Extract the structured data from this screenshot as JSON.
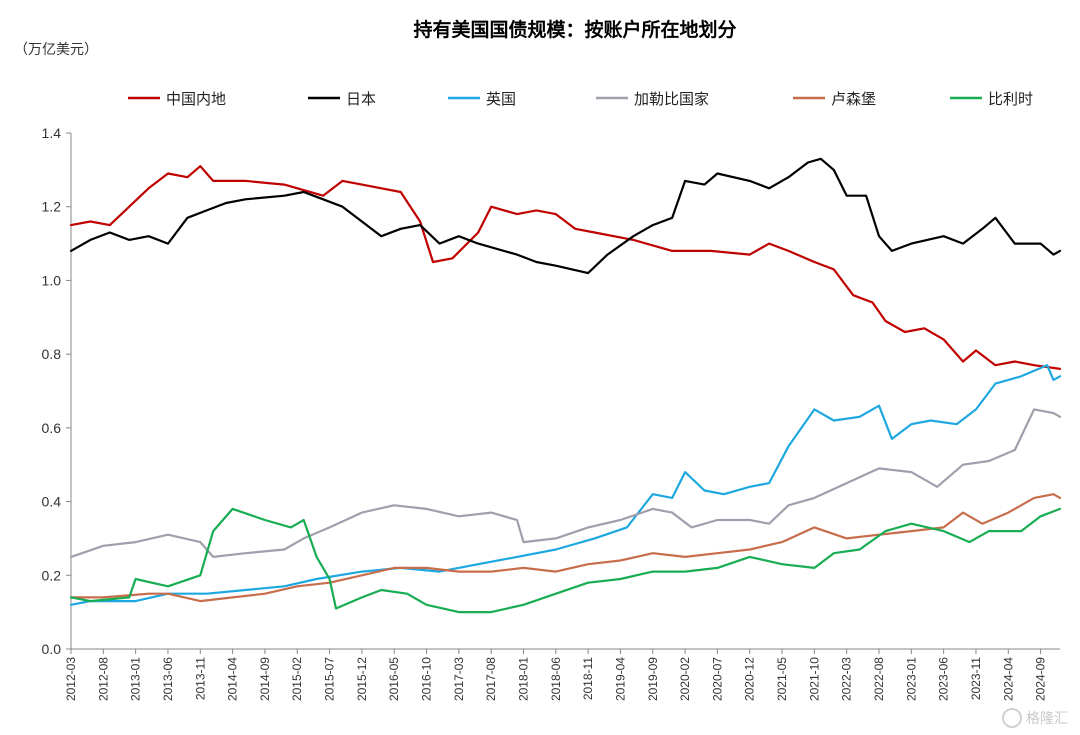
{
  "chart_data": {
    "type": "line",
    "title": "持有美国国债规模：按账户所在地划分",
    "ylabel": "（万亿美元）",
    "ylim": [
      0,
      1.4
    ],
    "yticks": [
      0.0,
      0.2,
      0.4,
      0.6,
      0.8,
      1.0,
      1.2,
      1.4
    ],
    "ytick_labels": [
      "0.0",
      "0.2",
      "0.4",
      "0.6",
      "0.8",
      "1.0",
      "1.2",
      "1.4"
    ],
    "x_start": "2012-03",
    "x_end": "2024-12",
    "xticks": [
      "2012-03",
      "2012-08",
      "2013-01",
      "2013-06",
      "2013-11",
      "2014-04",
      "2014-09",
      "2015-02",
      "2015-07",
      "2015-12",
      "2016-05",
      "2016-10",
      "2017-03",
      "2017-08",
      "2018-01",
      "2018-06",
      "2018-11",
      "2019-04",
      "2019-09",
      "2020-02",
      "2020-07",
      "2020-12",
      "2021-05",
      "2021-10",
      "2022-03",
      "2022-08",
      "2023-01",
      "2023-06",
      "2023-11",
      "2024-04",
      "2024-09"
    ],
    "grid": false,
    "legend_position": "top",
    "series": [
      {
        "name": "中国内地",
        "color": "#c00000",
        "points": [
          [
            "2012-03",
            1.15
          ],
          [
            "2012-06",
            1.16
          ],
          [
            "2012-09",
            1.15
          ],
          [
            "2012-12",
            1.2
          ],
          [
            "2013-03",
            1.25
          ],
          [
            "2013-06",
            1.29
          ],
          [
            "2013-09",
            1.28
          ],
          [
            "2013-11",
            1.31
          ],
          [
            "2014-01",
            1.27
          ],
          [
            "2014-06",
            1.27
          ],
          [
            "2014-12",
            1.26
          ],
          [
            "2015-06",
            1.23
          ],
          [
            "2015-09",
            1.27
          ],
          [
            "2015-12",
            1.26
          ],
          [
            "2016-03",
            1.25
          ],
          [
            "2016-06",
            1.24
          ],
          [
            "2016-09",
            1.16
          ],
          [
            "2016-11",
            1.05
          ],
          [
            "2017-02",
            1.06
          ],
          [
            "2017-06",
            1.13
          ],
          [
            "2017-08",
            1.2
          ],
          [
            "2017-12",
            1.18
          ],
          [
            "2018-03",
            1.19
          ],
          [
            "2018-06",
            1.18
          ],
          [
            "2018-09",
            1.14
          ],
          [
            "2018-12",
            1.13
          ],
          [
            "2019-06",
            1.11
          ],
          [
            "2019-12",
            1.08
          ],
          [
            "2020-06",
            1.08
          ],
          [
            "2020-12",
            1.07
          ],
          [
            "2021-03",
            1.1
          ],
          [
            "2021-06",
            1.08
          ],
          [
            "2021-10",
            1.05
          ],
          [
            "2022-01",
            1.03
          ],
          [
            "2022-04",
            0.96
          ],
          [
            "2022-07",
            0.94
          ],
          [
            "2022-09",
            0.89
          ],
          [
            "2022-12",
            0.86
          ],
          [
            "2023-03",
            0.87
          ],
          [
            "2023-06",
            0.84
          ],
          [
            "2023-09",
            0.78
          ],
          [
            "2023-11",
            0.81
          ],
          [
            "2024-02",
            0.77
          ],
          [
            "2024-05",
            0.78
          ],
          [
            "2024-08",
            0.77
          ],
          [
            "2024-12",
            0.76
          ]
        ]
      },
      {
        "name": "日本",
        "color": "#000000",
        "points": [
          [
            "2012-03",
            1.08
          ],
          [
            "2012-06",
            1.11
          ],
          [
            "2012-09",
            1.13
          ],
          [
            "2012-12",
            1.11
          ],
          [
            "2013-03",
            1.12
          ],
          [
            "2013-06",
            1.1
          ],
          [
            "2013-09",
            1.17
          ],
          [
            "2013-12",
            1.19
          ],
          [
            "2014-03",
            1.21
          ],
          [
            "2014-06",
            1.22
          ],
          [
            "2014-12",
            1.23
          ],
          [
            "2015-03",
            1.24
          ],
          [
            "2015-06",
            1.22
          ],
          [
            "2015-09",
            1.2
          ],
          [
            "2015-12",
            1.16
          ],
          [
            "2016-03",
            1.12
          ],
          [
            "2016-06",
            1.14
          ],
          [
            "2016-09",
            1.15
          ],
          [
            "2016-12",
            1.1
          ],
          [
            "2017-03",
            1.12
          ],
          [
            "2017-06",
            1.1
          ],
          [
            "2017-12",
            1.07
          ],
          [
            "2018-03",
            1.05
          ],
          [
            "2018-06",
            1.04
          ],
          [
            "2018-11",
            1.02
          ],
          [
            "2019-02",
            1.07
          ],
          [
            "2019-06",
            1.12
          ],
          [
            "2019-09",
            1.15
          ],
          [
            "2019-12",
            1.17
          ],
          [
            "2020-02",
            1.27
          ],
          [
            "2020-05",
            1.26
          ],
          [
            "2020-07",
            1.29
          ],
          [
            "2020-12",
            1.27
          ],
          [
            "2021-03",
            1.25
          ],
          [
            "2021-06",
            1.28
          ],
          [
            "2021-09",
            1.32
          ],
          [
            "2021-11",
            1.33
          ],
          [
            "2022-01",
            1.3
          ],
          [
            "2022-03",
            1.23
          ],
          [
            "2022-06",
            1.23
          ],
          [
            "2022-08",
            1.12
          ],
          [
            "2022-10",
            1.08
          ],
          [
            "2023-01",
            1.1
          ],
          [
            "2023-06",
            1.12
          ],
          [
            "2023-09",
            1.1
          ],
          [
            "2023-12",
            1.14
          ],
          [
            "2024-02",
            1.17
          ],
          [
            "2024-05",
            1.1
          ],
          [
            "2024-09",
            1.1
          ],
          [
            "2024-11",
            1.07
          ],
          [
            "2024-12",
            1.08
          ]
        ]
      },
      {
        "name": "英国",
        "color": "#1ea8e0",
        "points": [
          [
            "2012-03",
            0.12
          ],
          [
            "2012-06",
            0.13
          ],
          [
            "2013-01",
            0.13
          ],
          [
            "2013-06",
            0.15
          ],
          [
            "2013-12",
            0.15
          ],
          [
            "2014-06",
            0.16
          ],
          [
            "2014-12",
            0.17
          ],
          [
            "2015-05",
            0.19
          ],
          [
            "2015-12",
            0.21
          ],
          [
            "2016-06",
            0.22
          ],
          [
            "2016-12",
            0.21
          ],
          [
            "2017-06",
            0.23
          ],
          [
            "2017-12",
            0.25
          ],
          [
            "2018-06",
            0.27
          ],
          [
            "2018-12",
            0.3
          ],
          [
            "2019-05",
            0.33
          ],
          [
            "2019-09",
            0.42
          ],
          [
            "2019-12",
            0.41
          ],
          [
            "2020-02",
            0.48
          ],
          [
            "2020-05",
            0.43
          ],
          [
            "2020-08",
            0.42
          ],
          [
            "2020-12",
            0.44
          ],
          [
            "2021-03",
            0.45
          ],
          [
            "2021-06",
            0.55
          ],
          [
            "2021-10",
            0.65
          ],
          [
            "2022-01",
            0.62
          ],
          [
            "2022-05",
            0.63
          ],
          [
            "2022-08",
            0.66
          ],
          [
            "2022-10",
            0.57
          ],
          [
            "2023-01",
            0.61
          ],
          [
            "2023-04",
            0.62
          ],
          [
            "2023-08",
            0.61
          ],
          [
            "2023-11",
            0.65
          ],
          [
            "2024-02",
            0.72
          ],
          [
            "2024-06",
            0.74
          ],
          [
            "2024-10",
            0.77
          ],
          [
            "2024-11",
            0.73
          ],
          [
            "2024-12",
            0.74
          ]
        ]
      },
      {
        "name": "加勒比国家",
        "color": "#9f9fae",
        "points": [
          [
            "2012-03",
            0.25
          ],
          [
            "2012-08",
            0.28
          ],
          [
            "2013-01",
            0.29
          ],
          [
            "2013-06",
            0.31
          ],
          [
            "2013-11",
            0.29
          ],
          [
            "2014-01",
            0.25
          ],
          [
            "2014-06",
            0.26
          ],
          [
            "2014-12",
            0.27
          ],
          [
            "2015-03",
            0.3
          ],
          [
            "2015-07",
            0.33
          ],
          [
            "2015-12",
            0.37
          ],
          [
            "2016-05",
            0.39
          ],
          [
            "2016-10",
            0.38
          ],
          [
            "2017-03",
            0.36
          ],
          [
            "2017-08",
            0.37
          ],
          [
            "2017-12",
            0.35
          ],
          [
            "2018-01",
            0.29
          ],
          [
            "2018-06",
            0.3
          ],
          [
            "2018-11",
            0.33
          ],
          [
            "2019-04",
            0.35
          ],
          [
            "2019-09",
            0.38
          ],
          [
            "2019-12",
            0.37
          ],
          [
            "2020-03",
            0.33
          ],
          [
            "2020-07",
            0.35
          ],
          [
            "2020-12",
            0.35
          ],
          [
            "2021-03",
            0.34
          ],
          [
            "2021-06",
            0.39
          ],
          [
            "2021-10",
            0.41
          ],
          [
            "2022-03",
            0.45
          ],
          [
            "2022-08",
            0.49
          ],
          [
            "2023-01",
            0.48
          ],
          [
            "2023-05",
            0.44
          ],
          [
            "2023-09",
            0.5
          ],
          [
            "2024-01",
            0.51
          ],
          [
            "2024-05",
            0.54
          ],
          [
            "2024-08",
            0.65
          ],
          [
            "2024-11",
            0.64
          ],
          [
            "2024-12",
            0.63
          ]
        ]
      },
      {
        "name": "卢森堡",
        "color": "#c86d4c",
        "points": [
          [
            "2012-03",
            0.14
          ],
          [
            "2012-08",
            0.14
          ],
          [
            "2013-03",
            0.15
          ],
          [
            "2013-06",
            0.15
          ],
          [
            "2013-11",
            0.13
          ],
          [
            "2014-04",
            0.14
          ],
          [
            "2014-09",
            0.15
          ],
          [
            "2015-02",
            0.17
          ],
          [
            "2015-07",
            0.18
          ],
          [
            "2015-12",
            0.2
          ],
          [
            "2016-05",
            0.22
          ],
          [
            "2016-10",
            0.22
          ],
          [
            "2017-03",
            0.21
          ],
          [
            "2017-08",
            0.21
          ],
          [
            "2018-01",
            0.22
          ],
          [
            "2018-06",
            0.21
          ],
          [
            "2018-11",
            0.23
          ],
          [
            "2019-04",
            0.24
          ],
          [
            "2019-09",
            0.26
          ],
          [
            "2020-02",
            0.25
          ],
          [
            "2020-07",
            0.26
          ],
          [
            "2020-12",
            0.27
          ],
          [
            "2021-05",
            0.29
          ],
          [
            "2021-10",
            0.33
          ],
          [
            "2022-03",
            0.3
          ],
          [
            "2022-08",
            0.31
          ],
          [
            "2023-01",
            0.32
          ],
          [
            "2023-06",
            0.33
          ],
          [
            "2023-09",
            0.37
          ],
          [
            "2023-12",
            0.34
          ],
          [
            "2024-04",
            0.37
          ],
          [
            "2024-08",
            0.41
          ],
          [
            "2024-11",
            0.42
          ],
          [
            "2024-12",
            0.41
          ]
        ]
      },
      {
        "name": "比利时",
        "color": "#18ad52",
        "points": [
          [
            "2012-03",
            0.14
          ],
          [
            "2012-06",
            0.13
          ],
          [
            "2012-12",
            0.14
          ],
          [
            "2013-01",
            0.19
          ],
          [
            "2013-06",
            0.17
          ],
          [
            "2013-11",
            0.2
          ],
          [
            "2014-01",
            0.32
          ],
          [
            "2014-04",
            0.38
          ],
          [
            "2014-09",
            0.35
          ],
          [
            "2015-01",
            0.33
          ],
          [
            "2015-03",
            0.35
          ],
          [
            "2015-05",
            0.25
          ],
          [
            "2015-07",
            0.19
          ],
          [
            "2015-08",
            0.11
          ],
          [
            "2015-12",
            0.14
          ],
          [
            "2016-03",
            0.16
          ],
          [
            "2016-07",
            0.15
          ],
          [
            "2016-10",
            0.12
          ],
          [
            "2017-03",
            0.1
          ],
          [
            "2017-08",
            0.1
          ],
          [
            "2018-01",
            0.12
          ],
          [
            "2018-06",
            0.15
          ],
          [
            "2018-11",
            0.18
          ],
          [
            "2019-04",
            0.19
          ],
          [
            "2019-09",
            0.21
          ],
          [
            "2020-02",
            0.21
          ],
          [
            "2020-07",
            0.22
          ],
          [
            "2020-12",
            0.25
          ],
          [
            "2021-05",
            0.23
          ],
          [
            "2021-10",
            0.22
          ],
          [
            "2022-01",
            0.26
          ],
          [
            "2022-05",
            0.27
          ],
          [
            "2022-09",
            0.32
          ],
          [
            "2023-01",
            0.34
          ],
          [
            "2023-06",
            0.32
          ],
          [
            "2023-10",
            0.29
          ],
          [
            "2024-01",
            0.32
          ],
          [
            "2024-06",
            0.32
          ],
          [
            "2024-09",
            0.36
          ],
          [
            "2024-12",
            0.38
          ]
        ]
      }
    ]
  }
}
